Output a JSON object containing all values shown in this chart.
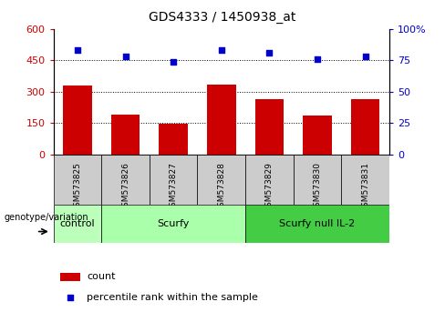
{
  "title": "GDS4333 / 1450938_at",
  "samples": [
    "GSM573825",
    "GSM573826",
    "GSM573827",
    "GSM573828",
    "GSM573829",
    "GSM573830",
    "GSM573831"
  ],
  "counts": [
    330,
    190,
    148,
    335,
    265,
    185,
    265
  ],
  "percentile_ranks": [
    83,
    78,
    74,
    83,
    81,
    76,
    78
  ],
  "ylim_left": [
    0,
    600
  ],
  "ylim_right": [
    0,
    100
  ],
  "yticks_left": [
    0,
    150,
    300,
    450,
    600
  ],
  "yticks_right": [
    0,
    25,
    50,
    75,
    100
  ],
  "ytick_labels_left": [
    "0",
    "150",
    "300",
    "450",
    "600"
  ],
  "ytick_labels_right": [
    "0",
    "25",
    "50",
    "75",
    "100%"
  ],
  "hlines": [
    150,
    300,
    450
  ],
  "bar_color": "#cc0000",
  "dot_color": "#0000cc",
  "bar_width": 0.6,
  "groups": [
    {
      "label": "control",
      "indices": [
        0
      ],
      "color": "#bbffbb"
    },
    {
      "label": "Scurfy",
      "indices": [
        1,
        2,
        3
      ],
      "color": "#aaffaa"
    },
    {
      "label": "Scurfy null IL-2",
      "indices": [
        4,
        5,
        6
      ],
      "color": "#44cc44"
    }
  ],
  "genotype_label": "genotype/variation",
  "legend_count_label": "count",
  "legend_pct_label": "percentile rank within the sample",
  "tick_label_color_left": "#cc0000",
  "tick_label_color_right": "#0000cc",
  "sample_box_color": "#cccccc",
  "spine_color": "#000000"
}
